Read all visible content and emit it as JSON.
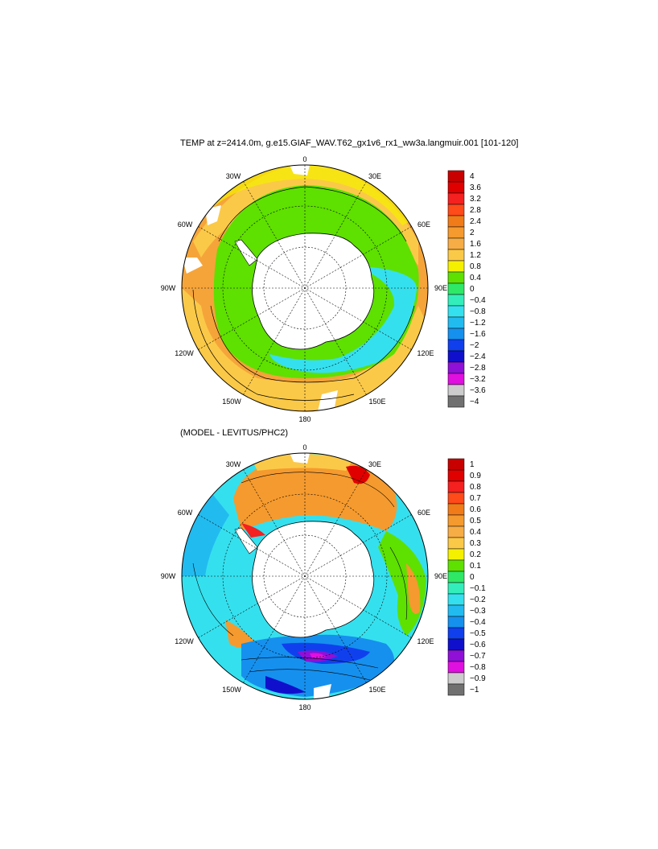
{
  "top_panel": {
    "title": "TEMP at z=2414.0m, g.e15.GIAF_WAV.T62_gx1v6_rx1_ww3a.langmuir.001 [101-120]",
    "longitude_labels": {
      "lon_0": "0",
      "lon_30e": "30E",
      "lon_60e": "60E",
      "lon_90e": "90E",
      "lon_120e": "120E",
      "lon_150e": "150E",
      "lon_180": "180",
      "lon_150w": "150W",
      "lon_120w": "120W",
      "lon_90w": "90W",
      "lon_60w": "60W",
      "lon_30w": "30W"
    },
    "colorbar": {
      "colors": [
        "#c80000",
        "#e00000",
        "#f52020",
        "#ff4a1a",
        "#f07b18",
        "#f59a2e",
        "#f7ad45",
        "#fbc948",
        "#f5f000",
        "#5ee000",
        "#2ee866",
        "#33eebb",
        "#35e0ee",
        "#22bbf0",
        "#1690ee",
        "#1040ee",
        "#1010cc",
        "#9010d8",
        "#e010e0",
        "#cccccc",
        "#707070"
      ],
      "labels": [
        "4",
        "3.6",
        "3.2",
        "2.8",
        "2.4",
        "2",
        "1.6",
        "1.2",
        "0.8",
        "0.4",
        "0",
        "−0.4",
        "−0.8",
        "−1.2",
        "−1.6",
        "−2",
        "−2.4",
        "−2.8",
        "−3.2",
        "−3.6",
        "−4"
      ]
    }
  },
  "bottom_panel": {
    "title": "(MODEL - LEVITUS/PHC2)",
    "longitude_labels": {
      "lon_0": "0",
      "lon_30e": "30E",
      "lon_60e": "60E",
      "lon_90e": "90E",
      "lon_120e": "120E",
      "lon_150e": "150E",
      "lon_180": "180",
      "lon_150w": "150W",
      "lon_120w": "120W",
      "lon_90w": "90W",
      "lon_60w": "60W",
      "lon_30w": "30W"
    },
    "colorbar": {
      "colors": [
        "#c80000",
        "#e00000",
        "#f52020",
        "#ff4a1a",
        "#f07b18",
        "#f59a2e",
        "#f7ad45",
        "#fbc948",
        "#f5f000",
        "#5ee000",
        "#2ee866",
        "#33eebb",
        "#35e0ee",
        "#22bbf0",
        "#1690ee",
        "#1040ee",
        "#1010cc",
        "#9010d8",
        "#e010e0",
        "#cccccc",
        "#707070"
      ],
      "labels": [
        "1",
        "0.9",
        "0.8",
        "0.7",
        "0.6",
        "0.5",
        "0.4",
        "0.3",
        "0.2",
        "0.1",
        "0",
        "−0.1",
        "−0.2",
        "−0.3",
        "−0.4",
        "−0.5",
        "−0.6",
        "−0.7",
        "−0.8",
        "−0.9",
        "−1"
      ]
    }
  }
}
